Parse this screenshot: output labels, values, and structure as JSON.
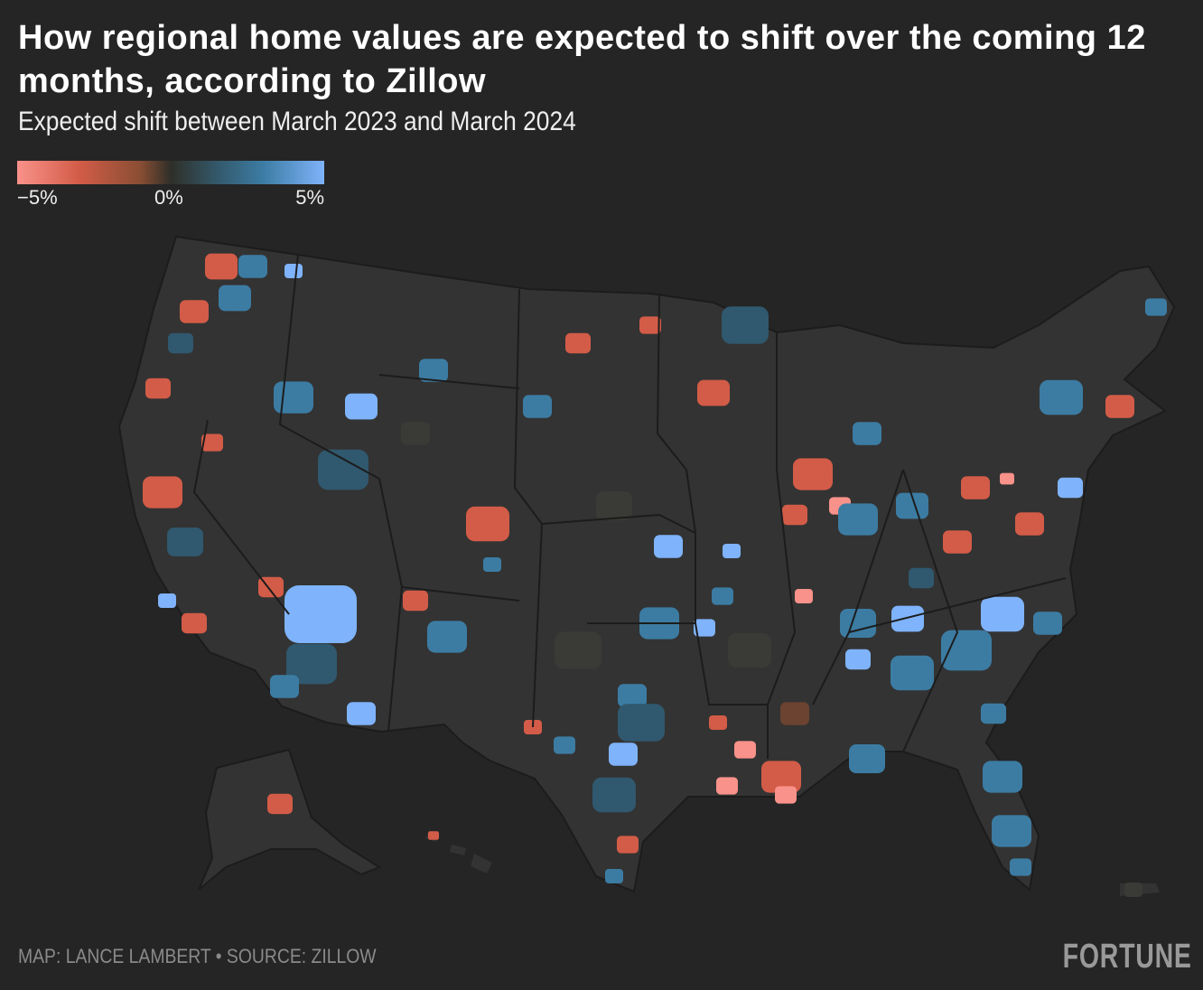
{
  "header": {
    "title": "How regional home values are expected to shift over the coming 12 months, according to Zillow",
    "subtitle": "Expected shift between March 2023 and March 2024"
  },
  "legend": {
    "min_label": "−5%",
    "mid_label": "0%",
    "max_label": "5%",
    "colors": {
      "min": "#f9928a",
      "neg": "#d35c48",
      "zero": "#2f2f28",
      "pos": "#3c7ca3",
      "max": "#7fb3fb"
    }
  },
  "footer": {
    "credit": "MAP: LANCE LAMBERT • SOURCE: ZILLOW",
    "logo": "FORTUNE"
  },
  "colors": {
    "background": "#252525",
    "land": "#333333",
    "border": "#1e1e1e"
  }
}
